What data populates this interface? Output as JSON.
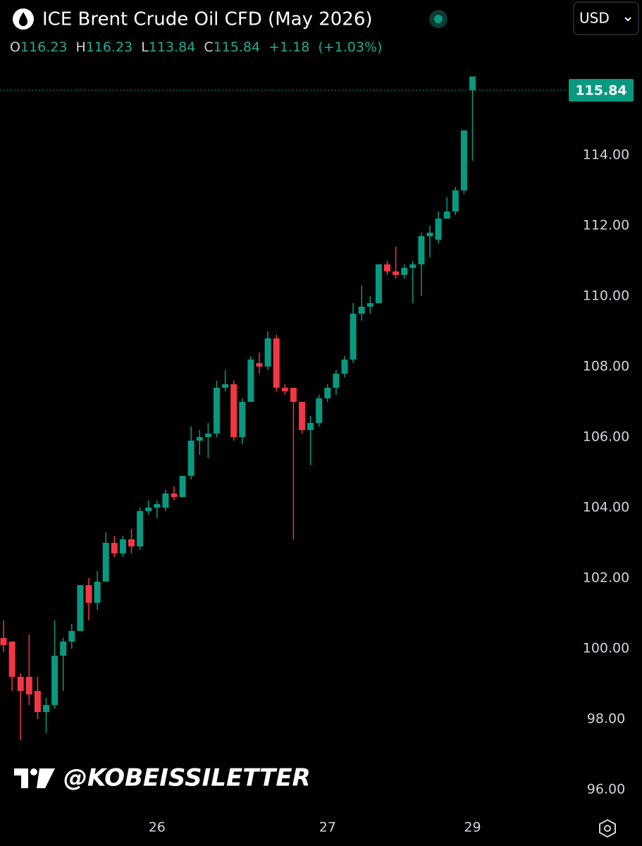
{
  "title": "ICE Brent Crude Oil CFD (May 2026)",
  "currency": "USD",
  "watermark": "@KOBEISSILETTER",
  "chart_data": {
    "type": "candlestick",
    "ohlc_labels": [
      "O",
      "H",
      "L",
      "C"
    ],
    "change": "+1.18",
    "change_pct": "(+1.03%)",
    "up_color": "#089981",
    "down_color": "#f23645",
    "categories": [
      null,
      null,
      null,
      null,
      null,
      null,
      null,
      null,
      null,
      null,
      null,
      null,
      null,
      null,
      null,
      null,
      null,
      null,
      "26",
      null,
      null,
      null,
      null,
      null,
      null,
      null,
      null,
      null,
      null,
      null,
      null,
      null,
      null,
      null,
      null,
      null,
      null,
      null,
      "27",
      null,
      null,
      null,
      null,
      null,
      null,
      null,
      null,
      null,
      null,
      null,
      null,
      null,
      null,
      null,
      null,
      "29"
    ],
    "open": [
      100.3,
      100.2,
      99.2,
      99.2,
      98.8,
      98.2,
      98.4,
      99.8,
      100.2,
      100.5,
      101.8,
      101.3,
      101.9,
      103.0,
      102.7,
      103.1,
      102.9,
      103.9,
      104.0,
      104.0,
      104.4,
      104.3,
      104.9,
      105.9,
      106.0,
      106.1,
      107.4,
      107.5,
      106.0,
      107.0,
      108.1,
      108.0,
      108.8,
      107.4,
      107.4,
      107.0,
      106.2,
      106.4,
      107.1,
      107.4,
      107.8,
      108.2,
      109.5,
      109.7,
      109.8,
      110.9,
      110.7,
      110.6,
      110.8,
      110.9,
      111.7,
      111.6,
      112.2,
      112.4,
      113.0,
      116.23
    ],
    "high": [
      100.8,
      100.2,
      99.3,
      100.4,
      99.2,
      98.6,
      100.8,
      100.3,
      100.7,
      101.8,
      102.0,
      102.2,
      103.3,
      103.2,
      103.2,
      103.4,
      104.0,
      104.2,
      104.2,
      104.5,
      104.6,
      104.9,
      106.3,
      106.2,
      106.4,
      107.6,
      107.9,
      107.6,
      107.1,
      108.3,
      108.4,
      109.0,
      108.9,
      107.5,
      107.4,
      107.0,
      106.6,
      107.2,
      107.5,
      107.9,
      108.3,
      109.8,
      110.3,
      110.0,
      110.9,
      111.0,
      111.4,
      110.9,
      111.0,
      111.8,
      112.0,
      112.4,
      112.8,
      113.1,
      114.7,
      116.23
    ],
    "low": [
      99.9,
      98.8,
      97.4,
      98.4,
      98.0,
      97.6,
      98.3,
      98.8,
      100.0,
      100.5,
      100.8,
      101.1,
      101.9,
      102.6,
      102.6,
      102.7,
      102.8,
      103.8,
      103.7,
      103.9,
      104.2,
      104.3,
      104.8,
      105.5,
      105.4,
      106.0,
      107.3,
      105.9,
      105.8,
      107.0,
      107.8,
      107.9,
      107.3,
      107.2,
      103.1,
      106.1,
      105.2,
      106.3,
      107.0,
      107.2,
      107.7,
      108.1,
      109.3,
      109.5,
      109.8,
      110.6,
      110.5,
      110.5,
      109.8,
      110.0,
      111.1,
      111.5,
      112.2,
      112.3,
      112.9,
      113.84
    ],
    "close": [
      100.1,
      99.2,
      98.8,
      98.7,
      98.2,
      98.4,
      99.8,
      100.2,
      100.5,
      101.8,
      101.3,
      101.9,
      103.0,
      102.7,
      103.1,
      102.9,
      103.9,
      104.0,
      104.1,
      104.4,
      104.3,
      104.9,
      105.9,
      106.0,
      106.1,
      107.4,
      107.5,
      106.0,
      107.0,
      108.2,
      108.0,
      108.8,
      107.4,
      107.3,
      107.0,
      106.2,
      106.4,
      107.1,
      107.4,
      107.8,
      108.2,
      109.5,
      109.7,
      109.8,
      110.9,
      110.7,
      110.6,
      110.8,
      110.9,
      111.7,
      111.8,
      112.2,
      112.4,
      113.0,
      114.7,
      115.84
    ],
    "ylim": [
      95.4,
      118.4
    ],
    "yticks": [
      {
        "value": 96,
        "label": "96.00"
      },
      {
        "value": 98,
        "label": "98.00"
      },
      {
        "value": 100,
        "label": "100.00"
      },
      {
        "value": 102,
        "label": "102.00"
      },
      {
        "value": 104,
        "label": "104.00"
      },
      {
        "value": 106,
        "label": "106.00"
      },
      {
        "value": 108,
        "label": "108.00"
      },
      {
        "value": 110,
        "label": "110.00"
      },
      {
        "value": 112,
        "label": "112.00"
      },
      {
        "value": 114,
        "label": "114.00"
      }
    ]
  }
}
